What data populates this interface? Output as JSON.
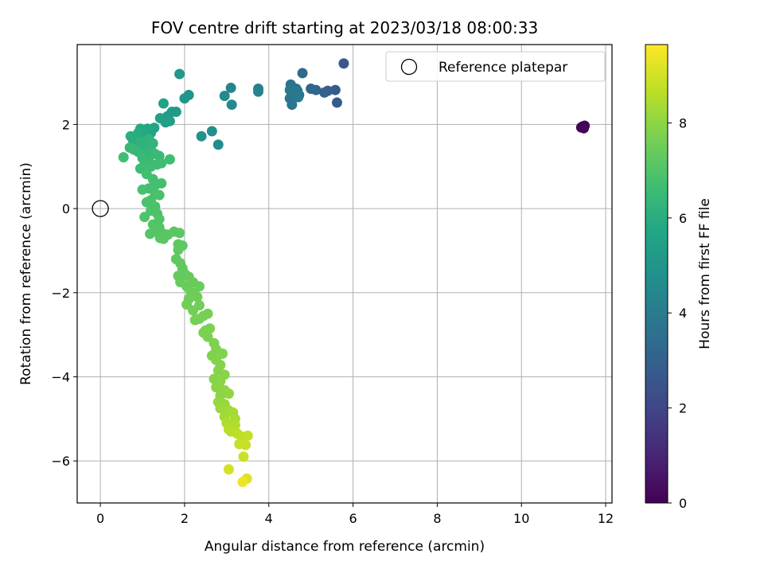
{
  "chart_data": {
    "type": "scatter",
    "title": "FOV centre drift starting at 2023/03/18 08:00:33",
    "xlabel": "Angular distance from reference (arcmin)",
    "ylabel": "Rotation from reference (arcmin)",
    "xlim": [
      -0.55,
      12.15
    ],
    "ylim": [
      -7.0,
      3.9
    ],
    "xticks": [
      0,
      2,
      4,
      6,
      8,
      10,
      12
    ],
    "yticks": [
      -6,
      -4,
      -2,
      0,
      2
    ],
    "xtick_labels": [
      "0",
      "2",
      "4",
      "6",
      "8",
      "10",
      "12"
    ],
    "ytick_labels": [
      "−6",
      "−4",
      "−2",
      "0",
      "2"
    ],
    "grid": true,
    "legend": {
      "position": "top-right",
      "entries": [
        "Reference platepar"
      ]
    },
    "reference_point": {
      "label": "Reference platepar",
      "x": 0,
      "y": 0
    },
    "colorbar": {
      "label": "Hours from first FF file",
      "colormap": "viridis",
      "range": [
        0,
        9.65
      ],
      "ticks": [
        0,
        2,
        4,
        6,
        8
      ],
      "tick_labels": [
        "0",
        "2",
        "4",
        "6",
        "8"
      ]
    },
    "series": [
      {
        "points": [
          [
            11.42,
            1.93,
            0.05
          ],
          [
            11.5,
            1.97,
            0.1
          ],
          [
            11.48,
            1.91,
            0.15
          ],
          [
            11.45,
            1.95,
            0.08
          ],
          [
            5.78,
            3.45,
            2.6
          ],
          [
            5.62,
            2.52,
            2.7
          ],
          [
            5.58,
            2.82,
            2.8
          ],
          [
            5.4,
            2.8,
            2.9
          ],
          [
            5.32,
            2.76,
            3.0
          ],
          [
            5.12,
            2.82,
            3.1
          ],
          [
            5.0,
            2.85,
            3.2
          ],
          [
            4.8,
            3.22,
            3.3
          ],
          [
            4.72,
            2.7,
            3.4
          ],
          [
            4.65,
            2.85,
            3.5
          ],
          [
            4.6,
            2.78,
            3.55
          ],
          [
            4.55,
            2.7,
            3.6
          ],
          [
            4.52,
            2.95,
            3.65
          ],
          [
            4.5,
            2.62,
            3.7
          ],
          [
            4.55,
            2.47,
            3.75
          ],
          [
            4.68,
            2.8,
            3.8
          ],
          [
            4.5,
            2.82,
            3.85
          ],
          [
            4.7,
            2.65,
            3.9
          ],
          [
            3.75,
            2.85,
            4.2
          ],
          [
            3.75,
            2.78,
            4.3
          ],
          [
            3.1,
            2.87,
            4.4
          ],
          [
            3.12,
            2.47,
            4.5
          ],
          [
            2.95,
            2.68,
            4.6
          ],
          [
            2.8,
            1.52,
            4.7
          ],
          [
            2.65,
            1.84,
            4.8
          ],
          [
            2.4,
            1.72,
            4.9
          ],
          [
            2.1,
            2.7,
            5.0
          ],
          [
            2.0,
            2.62,
            5.05
          ],
          [
            1.88,
            3.2,
            5.1
          ],
          [
            1.8,
            2.3,
            5.2
          ],
          [
            1.7,
            2.3,
            5.25
          ],
          [
            1.6,
            2.2,
            5.3
          ],
          [
            1.55,
            2.05,
            5.35
          ],
          [
            1.65,
            2.08,
            5.4
          ],
          [
            1.42,
            2.15,
            5.45
          ],
          [
            1.5,
            2.5,
            5.5
          ],
          [
            1.28,
            1.92,
            5.6
          ],
          [
            1.2,
            1.8,
            5.65
          ],
          [
            1.12,
            1.9,
            5.7
          ],
          [
            1.05,
            1.75,
            5.75
          ],
          [
            1.0,
            1.85,
            5.8
          ],
          [
            0.95,
            1.9,
            5.85
          ],
          [
            0.9,
            1.8,
            5.9
          ],
          [
            0.85,
            1.7,
            5.95
          ],
          [
            0.78,
            1.62,
            6.0
          ],
          [
            0.72,
            1.72,
            6.05
          ],
          [
            0.85,
            1.52,
            6.1
          ],
          [
            0.95,
            1.6,
            6.15
          ],
          [
            1.05,
            1.48,
            6.2
          ],
          [
            1.15,
            1.65,
            6.25
          ],
          [
            1.25,
            1.55,
            6.3
          ],
          [
            1.2,
            1.4,
            6.32
          ],
          [
            1.1,
            1.3,
            6.35
          ],
          [
            0.9,
            1.35,
            6.38
          ],
          [
            0.8,
            1.4,
            6.4
          ],
          [
            0.7,
            1.45,
            6.42
          ],
          [
            1.0,
            1.2,
            6.45
          ],
          [
            1.15,
            1.15,
            6.48
          ],
          [
            1.3,
            1.3,
            6.5
          ],
          [
            1.4,
            1.25,
            6.52
          ],
          [
            1.05,
            1.05,
            6.55
          ],
          [
            0.95,
            0.95,
            6.58
          ],
          [
            1.2,
            1.0,
            6.6
          ],
          [
            1.35,
            1.05,
            6.62
          ],
          [
            1.45,
            1.08,
            6.64
          ],
          [
            0.55,
            1.22,
            6.66
          ],
          [
            1.65,
            1.17,
            6.68
          ],
          [
            1.1,
            0.82,
            6.7
          ],
          [
            1.25,
            0.7,
            6.72
          ],
          [
            1.3,
            0.55,
            6.74
          ],
          [
            1.15,
            0.48,
            6.76
          ],
          [
            1.45,
            0.6,
            6.78
          ],
          [
            1.0,
            0.45,
            6.8
          ],
          [
            1.3,
            0.35,
            6.82
          ],
          [
            1.4,
            0.32,
            6.84
          ],
          [
            1.2,
            0.2,
            6.86
          ],
          [
            1.1,
            0.15,
            6.88
          ],
          [
            1.3,
            0.05,
            6.9
          ],
          [
            1.2,
            -0.05,
            6.92
          ],
          [
            1.35,
            -0.12,
            6.94
          ],
          [
            1.05,
            -0.2,
            6.96
          ],
          [
            1.4,
            -0.25,
            6.98
          ],
          [
            1.25,
            -0.38,
            7.0
          ],
          [
            1.4,
            -0.45,
            7.02
          ],
          [
            1.3,
            -0.55,
            7.04
          ],
          [
            1.18,
            -0.6,
            7.06
          ],
          [
            1.5,
            -0.6,
            7.08
          ],
          [
            1.42,
            -0.7,
            7.1
          ],
          [
            1.6,
            -0.62,
            7.12
          ],
          [
            1.75,
            -0.55,
            7.14
          ],
          [
            1.88,
            -0.58,
            7.16
          ],
          [
            1.5,
            -0.72,
            7.18
          ],
          [
            1.85,
            -0.85,
            7.2
          ],
          [
            1.95,
            -0.88,
            7.22
          ],
          [
            1.85,
            -0.98,
            7.24
          ],
          [
            1.8,
            -1.2,
            7.26
          ],
          [
            1.9,
            -1.3,
            7.28
          ],
          [
            1.95,
            -1.42,
            7.3
          ],
          [
            2.0,
            -1.55,
            7.32
          ],
          [
            1.85,
            -1.6,
            7.34
          ],
          [
            2.1,
            -1.62,
            7.36
          ],
          [
            1.9,
            -1.75,
            7.38
          ],
          [
            2.05,
            -1.85,
            7.4
          ],
          [
            2.2,
            -1.75,
            7.42
          ],
          [
            2.35,
            -1.85,
            7.44
          ],
          [
            2.15,
            -1.98,
            7.46
          ],
          [
            2.25,
            -2.05,
            7.48
          ],
          [
            2.1,
            -2.15,
            7.5
          ],
          [
            2.3,
            -2.1,
            7.52
          ],
          [
            2.05,
            -2.28,
            7.54
          ],
          [
            2.35,
            -2.3,
            7.56
          ],
          [
            2.2,
            -2.42,
            7.58
          ],
          [
            2.45,
            -2.55,
            7.6
          ],
          [
            2.25,
            -2.65,
            7.62
          ],
          [
            2.35,
            -2.62,
            7.64
          ],
          [
            2.55,
            -2.5,
            7.66
          ],
          [
            2.5,
            -2.9,
            7.68
          ],
          [
            2.45,
            -2.95,
            7.7
          ],
          [
            2.55,
            -3.05,
            7.72
          ],
          [
            2.6,
            -2.85,
            7.74
          ],
          [
            2.7,
            -3.2,
            7.76
          ],
          [
            2.75,
            -3.35,
            7.78
          ],
          [
            2.65,
            -3.5,
            7.8
          ],
          [
            2.9,
            -3.45,
            7.82
          ],
          [
            2.75,
            -3.6,
            7.84
          ],
          [
            2.85,
            -3.72,
            7.86
          ],
          [
            2.8,
            -3.85,
            7.88
          ],
          [
            2.7,
            -4.05,
            7.9
          ],
          [
            2.95,
            -3.95,
            7.92
          ],
          [
            2.85,
            -4.1,
            7.94
          ],
          [
            2.75,
            -4.25,
            7.96
          ],
          [
            2.95,
            -4.32,
            7.98
          ],
          [
            2.85,
            -4.45,
            8.0
          ],
          [
            3.05,
            -4.4,
            8.05
          ],
          [
            2.8,
            -4.6,
            8.1
          ],
          [
            2.95,
            -4.65,
            8.15
          ],
          [
            2.85,
            -4.75,
            8.2
          ],
          [
            3.05,
            -4.8,
            8.25
          ],
          [
            2.95,
            -4.95,
            8.3
          ],
          [
            3.15,
            -4.85,
            8.35
          ],
          [
            3.2,
            -5.0,
            8.4
          ],
          [
            3.0,
            -5.1,
            8.45
          ],
          [
            3.2,
            -5.15,
            8.5
          ],
          [
            3.05,
            -5.25,
            8.55
          ],
          [
            3.1,
            -5.3,
            8.6
          ],
          [
            3.25,
            -5.35,
            8.65
          ],
          [
            3.35,
            -5.42,
            8.7
          ],
          [
            3.5,
            -5.4,
            8.75
          ],
          [
            3.3,
            -5.6,
            8.8
          ],
          [
            3.45,
            -5.62,
            8.85
          ],
          [
            3.4,
            -5.9,
            8.9
          ],
          [
            3.05,
            -6.2,
            9.0
          ],
          [
            3.48,
            -6.42,
            9.2
          ],
          [
            3.38,
            -6.5,
            9.4
          ]
        ]
      }
    ]
  }
}
